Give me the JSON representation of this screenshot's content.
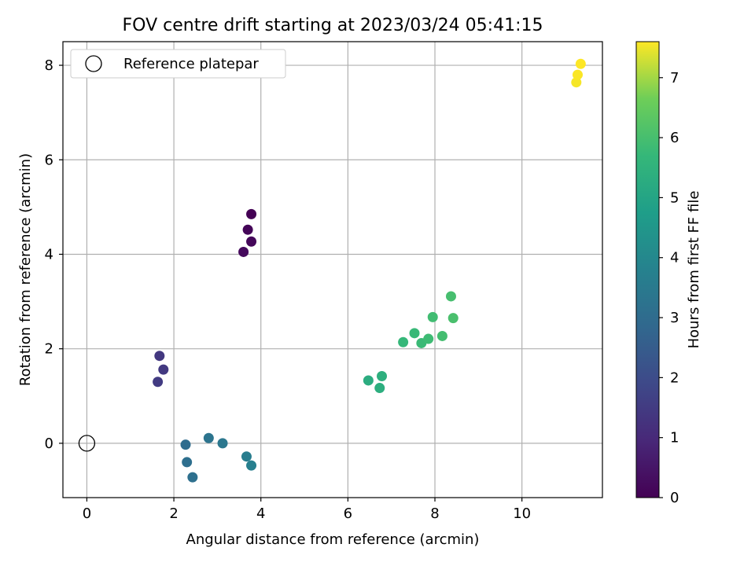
{
  "chart_data": {
    "type": "scatter",
    "title": "FOV centre drift starting at 2023/03/24 05:41:15",
    "xlabel": "Angular distance from reference (arcmin)",
    "ylabel": "Rotation from reference (arcmin)",
    "xlim": [
      -0.55,
      11.85
    ],
    "ylim": [
      -1.15,
      8.5
    ],
    "xticks": [
      0,
      2,
      4,
      6,
      8,
      10
    ],
    "yticks": [
      0,
      2,
      4,
      6,
      8
    ],
    "grid": true,
    "legend": {
      "position": "top-left",
      "entries": [
        "Reference platepar"
      ]
    },
    "reference_point": {
      "name": "Reference platepar",
      "x": 0,
      "y": 0
    },
    "colorbar": {
      "label": "Hours from first FF file",
      "range": [
        0,
        7.6
      ],
      "ticks": [
        0,
        1,
        2,
        3,
        4,
        5,
        6,
        7
      ],
      "colormap": "viridis"
    },
    "points": [
      {
        "x": 3.78,
        "y": 4.85,
        "hours": 0.0
      },
      {
        "x": 3.7,
        "y": 4.52,
        "hours": 0.1
      },
      {
        "x": 3.78,
        "y": 4.27,
        "hours": 0.15
      },
      {
        "x": 3.6,
        "y": 4.05,
        "hours": 0.2
      },
      {
        "x": 1.67,
        "y": 1.85,
        "hours": 1.4
      },
      {
        "x": 1.76,
        "y": 1.56,
        "hours": 1.45
      },
      {
        "x": 1.63,
        "y": 1.3,
        "hours": 1.5
      },
      {
        "x": 2.27,
        "y": -0.03,
        "hours": 3.0
      },
      {
        "x": 2.3,
        "y": -0.4,
        "hours": 3.1
      },
      {
        "x": 2.43,
        "y": -0.72,
        "hours": 3.15
      },
      {
        "x": 2.8,
        "y": 0.11,
        "hours": 3.3
      },
      {
        "x": 3.12,
        "y": 0.0,
        "hours": 3.4
      },
      {
        "x": 3.67,
        "y": -0.28,
        "hours": 3.6
      },
      {
        "x": 3.78,
        "y": -0.47,
        "hours": 3.7
      },
      {
        "x": 6.47,
        "y": 1.33,
        "hours": 5.3
      },
      {
        "x": 6.73,
        "y": 1.17,
        "hours": 5.35
      },
      {
        "x": 6.78,
        "y": 1.42,
        "hours": 5.4
      },
      {
        "x": 7.27,
        "y": 2.14,
        "hours": 5.7
      },
      {
        "x": 7.53,
        "y": 2.33,
        "hours": 5.75
      },
      {
        "x": 7.69,
        "y": 2.12,
        "hours": 5.8
      },
      {
        "x": 7.85,
        "y": 2.21,
        "hours": 5.85
      },
      {
        "x": 7.95,
        "y": 2.67,
        "hours": 5.9
      },
      {
        "x": 8.17,
        "y": 2.27,
        "hours": 5.95
      },
      {
        "x": 8.37,
        "y": 3.11,
        "hours": 6.0
      },
      {
        "x": 8.42,
        "y": 2.65,
        "hours": 6.05
      },
      {
        "x": 11.25,
        "y": 7.64,
        "hours": 7.55
      },
      {
        "x": 11.28,
        "y": 7.8,
        "hours": 7.58
      },
      {
        "x": 11.35,
        "y": 8.03,
        "hours": 7.6
      }
    ]
  }
}
